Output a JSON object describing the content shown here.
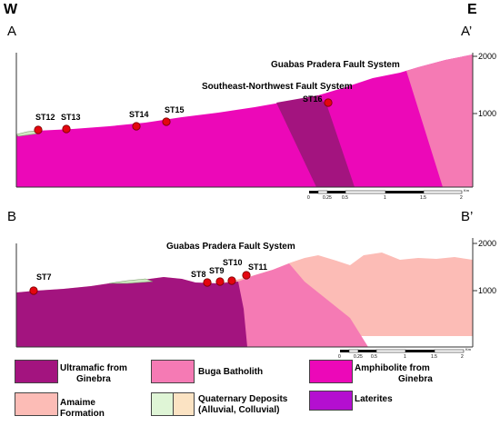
{
  "compass": {
    "west": "W",
    "east": "E"
  },
  "section_ab": {
    "start": "A",
    "end": "A’",
    "elevations": [
      "2000",
      "1000"
    ],
    "faults": [
      "Guabas Pradera Fault System",
      "Southeast-Northwest Fault System"
    ],
    "stations": [
      "ST12",
      "ST13",
      "ST14",
      "ST15",
      "ST16"
    ],
    "scale_ticks": [
      "0",
      "0.25",
      "0.5",
      "1",
      "1.5",
      "2"
    ],
    "scale_unit": "Km"
  },
  "section_bb": {
    "start": "B",
    "end": "B’",
    "elevations": [
      "2000",
      "1000"
    ],
    "faults": [
      "Guabas Pradera Fault System"
    ],
    "stations": [
      "ST7",
      "ST8",
      "ST9",
      "ST10",
      "ST11"
    ],
    "scale_ticks": [
      "0",
      "0.25",
      "0.5",
      "1",
      "1.5",
      "2"
    ],
    "scale_unit": "Km"
  },
  "legend": [
    {
      "label_1": "Ultramafic from",
      "label_2": "Ginebra",
      "color": "#a3147f"
    },
    {
      "label_1": "Buga Batholith",
      "label_2": "",
      "color": "#f57ab4"
    },
    {
      "label_1": "Amphibolite from",
      "label_2": "Ginebra",
      "color": "#ec08b8"
    },
    {
      "label_1": "Amaime",
      "label_2": "Formation",
      "color": "#fcbcb6"
    },
    {
      "label_1": "Quaternary Deposits",
      "label_2": "(Alluvial, Colluvial)",
      "color_a": "#dff5d6",
      "color_b": "#fbe3c3"
    },
    {
      "label_1": "Laterites",
      "label_2": "",
      "color": "#b40fd0"
    }
  ]
}
